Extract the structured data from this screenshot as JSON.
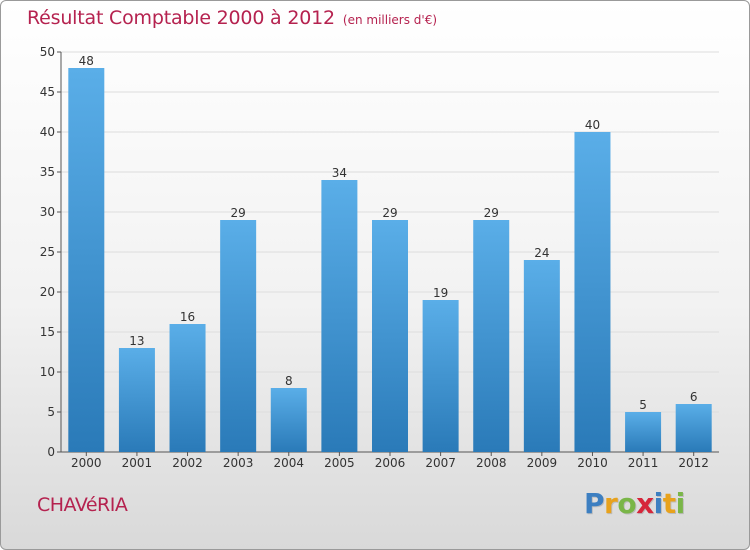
{
  "chart_data": {
    "type": "bar",
    "title": "Résultat Comptable 2000 à 2012",
    "subtitle": "(en milliers d'€)",
    "categories": [
      "2000",
      "2001",
      "2002",
      "2003",
      "2004",
      "2005",
      "2006",
      "2007",
      "2008",
      "2009",
      "2010",
      "2011",
      "2012"
    ],
    "values": [
      48,
      13,
      16,
      29,
      8,
      34,
      29,
      19,
      29,
      24,
      40,
      5,
      6
    ],
    "ylim": [
      0,
      50
    ],
    "yticks": [
      0,
      5,
      10,
      15,
      20,
      25,
      30,
      35,
      40,
      45,
      50
    ],
    "grid": true,
    "xlabel": "",
    "ylabel": ""
  },
  "footer": {
    "commune": "CHAVéRIA",
    "logo_letters": [
      "P",
      "r",
      "o",
      "x",
      "i",
      "t",
      "i"
    ]
  },
  "colors": {
    "title": "#b5224f",
    "bar_light": "#5aaee8",
    "bar_dark": "#2a7ab8",
    "logo": [
      "#3d7fc1",
      "#e8a21c",
      "#7ab648",
      "#d6263a",
      "#3d7fc1",
      "#e8a21c",
      "#7ab648"
    ]
  }
}
